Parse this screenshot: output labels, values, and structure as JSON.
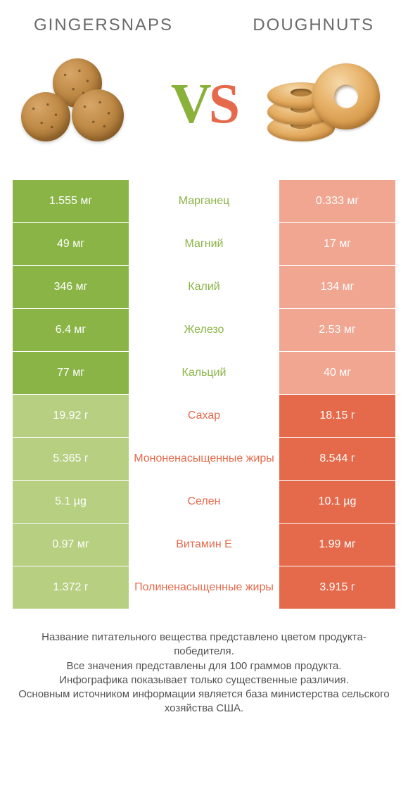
{
  "header": {
    "left_title": "GINGERSNAPS",
    "right_title": "DOUGHNUTS",
    "vs_v": "V",
    "vs_s": "S"
  },
  "colors": {
    "left_win": "#8ab446",
    "left_lose": "#b6cf80",
    "right_win": "#e56a4b",
    "right_lose": "#f0a690",
    "mid_left_text": "#8ab446",
    "mid_right_text": "#e56a4b",
    "title_text": "#6a6a6a",
    "footer_text": "#525252",
    "background": "#ffffff"
  },
  "rows": [
    {
      "left": "1.555 мг",
      "label": "Марганец",
      "right": "0.333 мг",
      "winner": "left"
    },
    {
      "left": "49 мг",
      "label": "Магний",
      "right": "17 мг",
      "winner": "left"
    },
    {
      "left": "346 мг",
      "label": "Калий",
      "right": "134 мг",
      "winner": "left"
    },
    {
      "left": "6.4 мг",
      "label": "Железо",
      "right": "2.53 мг",
      "winner": "left"
    },
    {
      "left": "77 мг",
      "label": "Кальций",
      "right": "40 мг",
      "winner": "left"
    },
    {
      "left": "19.92 г",
      "label": "Сахар",
      "right": "18.15 г",
      "winner": "right"
    },
    {
      "left": "5.365 г",
      "label": "Мононенасыщенные жиры",
      "right": "8.544 г",
      "winner": "right"
    },
    {
      "left": "5.1 µg",
      "label": "Селен",
      "right": "10.1 µg",
      "winner": "right"
    },
    {
      "left": "0.97 мг",
      "label": "Витамин E",
      "right": "1.99 мг",
      "winner": "right"
    },
    {
      "left": "1.372 г",
      "label": "Полиненасыщенные жиры",
      "right": "3.915 г",
      "winner": "right"
    }
  ],
  "footer": "Название питательного вещества представлено цветом продукта-победителя.\nВсе значения представлены для 100 граммов продукта.\nИнфографика показывает только существенные различия.\nОсновным источником информации является база министерства сельского хозяйства США."
}
